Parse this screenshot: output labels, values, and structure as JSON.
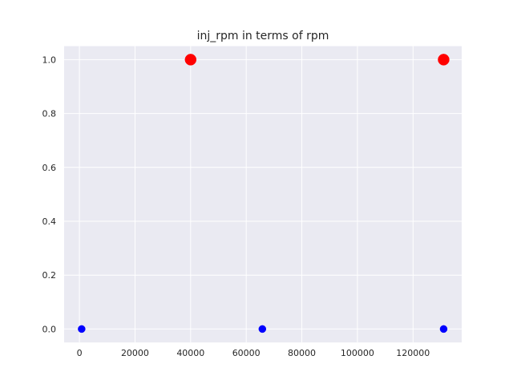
{
  "chart_data": {
    "type": "scatter",
    "title": "inj_rpm in terms of rpm",
    "xlabel": "",
    "ylabel": "",
    "xlim": [
      -5500,
      137500
    ],
    "ylim": [
      -0.05,
      1.05
    ],
    "x_ticks": [
      0,
      20000,
      40000,
      60000,
      80000,
      100000,
      120000
    ],
    "y_ticks": [
      0.0,
      0.2,
      0.4,
      0.6,
      0.8,
      1.0
    ],
    "x_tick_labels": [
      "0",
      "20000",
      "40000",
      "60000",
      "80000",
      "100000",
      "120000"
    ],
    "y_tick_labels": [
      "0.0",
      "0.2",
      "0.4",
      "0.6",
      "0.8",
      "1.0"
    ],
    "grid": true,
    "legend": "none",
    "series": [
      {
        "color": "#0000ff",
        "marker_size": "small",
        "points": [
          {
            "x": 800,
            "y": 0.0
          },
          {
            "x": 65800,
            "y": 0.0
          },
          {
            "x": 131000,
            "y": 0.0
          }
        ]
      },
      {
        "color": "#ff0000",
        "marker_size": "large",
        "points": [
          {
            "x": 40000,
            "y": 1.0
          },
          {
            "x": 131000,
            "y": 1.0
          }
        ]
      }
    ],
    "colors": {
      "plot_background": "#eaeaf2",
      "grid": "#ffffff",
      "text": "#262626"
    }
  }
}
